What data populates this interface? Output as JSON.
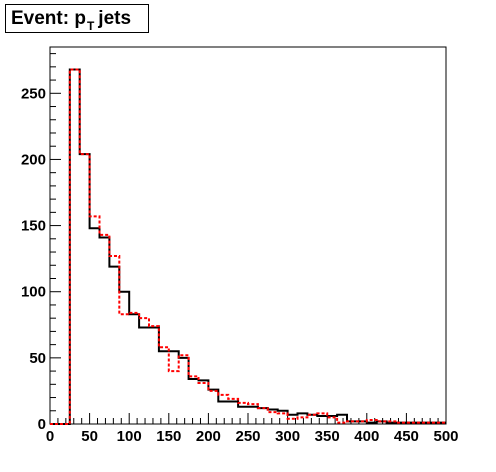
{
  "title": {
    "main": "Event: p",
    "subscript": "T",
    "suffix": "jets"
  },
  "chart_data": {
    "type": "histogram",
    "xlim": [
      0,
      500
    ],
    "ylim": [
      0,
      285
    ],
    "bin_width": 12.5,
    "x_ticks": [
      0,
      50,
      100,
      150,
      200,
      250,
      300,
      350,
      400,
      450,
      500
    ],
    "y_ticks": [
      0,
      50,
      100,
      150,
      200,
      250
    ],
    "grid": false,
    "series": [
      {
        "color": "#000000",
        "style": "solid",
        "values": [
          0,
          0,
          268,
          204,
          148,
          141,
          119,
          100,
          83,
          73,
          73,
          55,
          55,
          50,
          34,
          33,
          26,
          17,
          17,
          13,
          13,
          12,
          11,
          10,
          7,
          8,
          7,
          6,
          6,
          7,
          2,
          2,
          1,
          2,
          1,
          1,
          1,
          1,
          1,
          1
        ]
      },
      {
        "color": "#ff0000",
        "style": "dashed",
        "values": [
          0,
          0,
          268,
          204,
          157,
          143,
          127,
          83,
          84,
          80,
          74,
          58,
          40,
          52,
          36,
          31,
          25,
          22,
          19,
          16,
          15,
          12,
          9,
          8,
          4,
          5,
          7,
          8,
          5,
          1,
          2,
          2,
          3,
          2,
          2,
          1,
          1,
          1,
          1,
          1
        ]
      }
    ]
  }
}
